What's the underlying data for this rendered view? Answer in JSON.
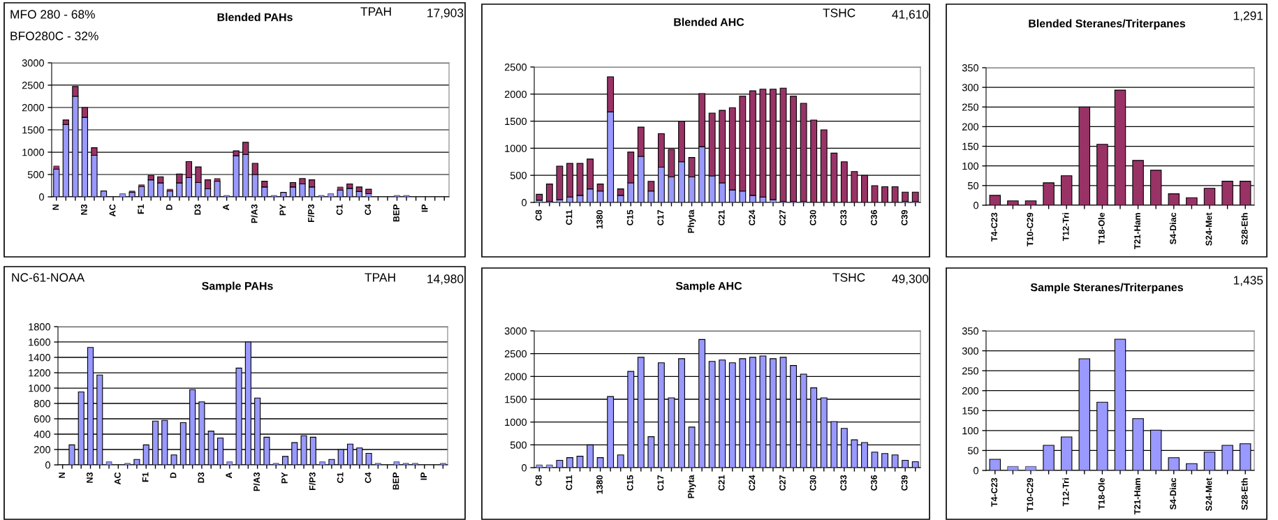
{
  "chart_data": [
    {
      "type": "bar",
      "title": "Blended PAHs",
      "annotations": [
        "MFO 280 - 68%",
        "BFO280C - 32%",
        "TPAH",
        "17,903"
      ],
      "categories": [
        "N",
        null,
        null,
        "N3",
        null,
        null,
        "AC",
        null,
        null,
        "F1",
        null,
        null,
        "D",
        null,
        null,
        "D3",
        null,
        null,
        "A",
        null,
        null,
        "P/A3",
        null,
        null,
        "PY",
        null,
        null,
        "F/P3",
        null,
        null,
        "C1",
        null,
        null,
        "C4",
        null,
        null,
        "BEP",
        null,
        null,
        "IP",
        null,
        null
      ],
      "stacked": true,
      "series": [
        {
          "color": "#9999ff",
          "values": [
            620,
            1620,
            2250,
            1780,
            930,
            130,
            0,
            70,
            100,
            230,
            380,
            310,
            130,
            310,
            430,
            320,
            180,
            350,
            30,
            920,
            950,
            500,
            220,
            30,
            100,
            220,
            290,
            220,
            30,
            70,
            150,
            190,
            120,
            70,
            0,
            0,
            30,
            30,
            0,
            0,
            0,
            0
          ]
        },
        {
          "color": "#993366",
          "values": [
            70,
            100,
            220,
            220,
            170,
            0,
            0,
            0,
            30,
            40,
            100,
            140,
            40,
            200,
            360,
            350,
            200,
            60,
            0,
            110,
            270,
            250,
            130,
            0,
            0,
            100,
            120,
            160,
            0,
            0,
            70,
            100,
            100,
            100,
            0,
            0,
            0,
            0,
            0,
            0,
            0,
            0
          ]
        }
      ],
      "ylim": [
        0,
        3000
      ],
      "yticks": [
        0,
        500,
        1000,
        1500,
        2000,
        2500,
        3000
      ],
      "grid": "y"
    },
    {
      "type": "bar",
      "title": "Blended AHC",
      "annotations": [
        "TSHC",
        "41,610"
      ],
      "categories": [
        "C8",
        null,
        null,
        "C11",
        null,
        null,
        "1380",
        null,
        null,
        "C15",
        null,
        null,
        "C17",
        null,
        null,
        "Phyta",
        null,
        null,
        "C21",
        null,
        null,
        "C24",
        null,
        null,
        "C27",
        null,
        null,
        "C30",
        null,
        null,
        "C33",
        null,
        null,
        "C36",
        null,
        null,
        "C39",
        null
      ],
      "stacked": true,
      "series": [
        {
          "color": "#9999ff",
          "values": [
            40,
            20,
            50,
            100,
            130,
            250,
            210,
            1670,
            130,
            360,
            850,
            210,
            650,
            470,
            750,
            470,
            1030,
            490,
            360,
            230,
            210,
            130,
            100,
            50,
            20,
            20,
            20,
            0,
            0,
            0,
            0,
            0,
            0,
            0,
            0,
            0,
            20,
            20
          ]
        },
        {
          "color": "#993366",
          "values": [
            110,
            320,
            620,
            620,
            590,
            550,
            130,
            650,
            120,
            570,
            540,
            180,
            620,
            510,
            750,
            360,
            980,
            1160,
            1340,
            1520,
            1750,
            1930,
            1990,
            2040,
            2090,
            1940,
            1810,
            1520,
            1340,
            910,
            750,
            570,
            500,
            310,
            290,
            290,
            170,
            170
          ]
        }
      ],
      "ylim": [
        0,
        2500
      ],
      "yticks": [
        0,
        500,
        1000,
        1500,
        2000,
        2500
      ],
      "grid": "y"
    },
    {
      "type": "bar",
      "title": "Blended Steranes/Triterpanes",
      "annotations": [
        "1,291"
      ],
      "categories": [
        "T4-C23",
        null,
        "T10-C29",
        null,
        "T12-Tri",
        null,
        "T18-Ole",
        null,
        "T21-Ham",
        null,
        "S4-Diac",
        null,
        "S24-Met",
        null,
        "S28-Eth"
      ],
      "series": [
        {
          "color": "#993366",
          "values": [
            25,
            11,
            11,
            57,
            75,
            250,
            155,
            293,
            114,
            89,
            29,
            19,
            43,
            61,
            61
          ]
        }
      ],
      "ylim": [
        0,
        350
      ],
      "yticks": [
        0,
        50,
        100,
        150,
        200,
        250,
        300,
        350
      ],
      "grid": "y"
    },
    {
      "type": "bar",
      "title": "Sample PAHs",
      "annotations": [
        "NC-61-NOAA",
        "TPAH",
        "14,980"
      ],
      "categories": [
        "N",
        null,
        null,
        "N3",
        null,
        null,
        "AC",
        null,
        null,
        "F1",
        null,
        null,
        "D",
        null,
        null,
        "D3",
        null,
        null,
        "A",
        null,
        null,
        "P/A3",
        null,
        null,
        "PY",
        null,
        null,
        "F/P3",
        null,
        null,
        "C1",
        null,
        null,
        "C4",
        null,
        null,
        "BEP",
        null,
        null,
        "IP",
        null,
        null
      ],
      "series": [
        {
          "color": "#9999ff",
          "values": [
            0,
            260,
            950,
            1530,
            1170,
            40,
            0,
            20,
            70,
            260,
            570,
            580,
            130,
            550,
            980,
            820,
            440,
            350,
            40,
            1260,
            1600,
            870,
            360,
            20,
            110,
            290,
            380,
            360,
            40,
            70,
            200,
            270,
            220,
            150,
            20,
            0,
            40,
            20,
            20,
            0,
            0,
            20
          ]
        }
      ],
      "ylim": [
        0,
        1800
      ],
      "yticks": [
        0,
        200,
        400,
        600,
        800,
        1000,
        1200,
        1400,
        1600,
        1800
      ],
      "grid": "y"
    },
    {
      "type": "bar",
      "title": "Sample AHC",
      "annotations": [
        "TSHC",
        "49,300"
      ],
      "categories": [
        "C8",
        null,
        null,
        "C11",
        null,
        null,
        "1380",
        null,
        null,
        "C15",
        null,
        null,
        "C17",
        null,
        null,
        "Phyta",
        null,
        null,
        "C21",
        null,
        null,
        "C24",
        null,
        null,
        "C27",
        null,
        null,
        "C30",
        null,
        null,
        "C33",
        null,
        null,
        "C36",
        null,
        null,
        "C39",
        null
      ],
      "series": [
        {
          "color": "#9999ff",
          "values": [
            60,
            60,
            160,
            220,
            250,
            500,
            220,
            1560,
            280,
            2110,
            2420,
            680,
            2300,
            1530,
            2390,
            890,
            2810,
            2330,
            2360,
            2300,
            2390,
            2420,
            2450,
            2390,
            2420,
            2240,
            2050,
            1750,
            1530,
            1010,
            860,
            610,
            550,
            340,
            310,
            280,
            160,
            130
          ]
        }
      ],
      "ylim": [
        0,
        3000
      ],
      "yticks": [
        0,
        500,
        1000,
        1500,
        2000,
        2500,
        3000
      ],
      "grid": "y"
    },
    {
      "type": "bar",
      "title": "Sample Steranes/Triterpanes",
      "annotations": [
        "1,435"
      ],
      "categories": [
        "T4-C23",
        null,
        "T10-C29",
        null,
        "T12-Tri",
        null,
        "T18-Ole",
        null,
        "T21-Ham",
        null,
        "S4-Diac",
        null,
        "S24-Met",
        null,
        "S28-Eth"
      ],
      "series": [
        {
          "color": "#9999ff",
          "values": [
            28,
            10,
            10,
            63,
            84,
            280,
            171,
            329,
            130,
            101,
            32,
            17,
            46,
            63,
            67
          ]
        }
      ],
      "ylim": [
        0,
        350
      ],
      "yticks": [
        0,
        50,
        100,
        150,
        200,
        250,
        300,
        350
      ],
      "grid": "y"
    }
  ]
}
